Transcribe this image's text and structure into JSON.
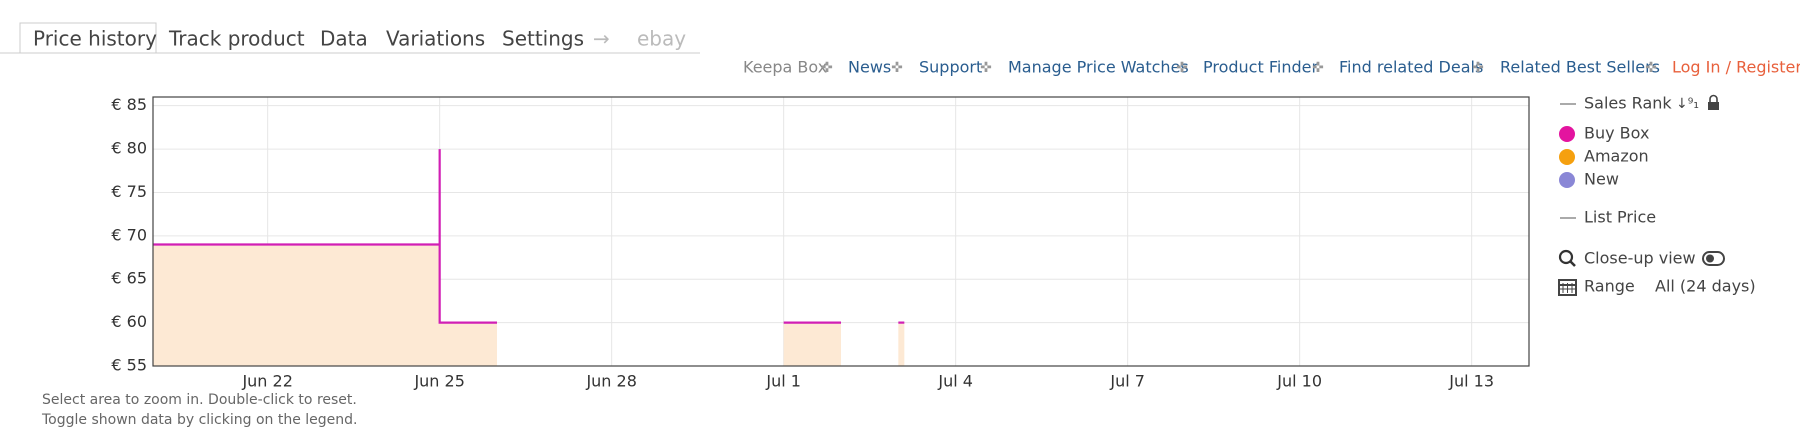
{
  "tabs": [
    "Price history",
    "Track product",
    "Data",
    "Variations",
    "Settings"
  ],
  "arrow": "→",
  "ebay": "ebay",
  "links": [
    "Keepa Box",
    "News",
    "Support",
    "Manage Price Watches",
    "Product Finder",
    "Find related Deals",
    "Related Best Sellers",
    "Log In / Register"
  ],
  "legend": {
    "sales_rank": "Sales Rank",
    "items": [
      {
        "name": "Buy Box",
        "color": "#e3149f"
      },
      {
        "name": "Amazon",
        "color": "#f5a00f"
      },
      {
        "name": "New",
        "color": "#8a87d6"
      }
    ],
    "list_price": "List Price",
    "close_up": "Close-up view",
    "range": "Range",
    "range_value": "All (24 days)"
  },
  "notes": [
    "Select area to zoom in. Double-click to reset.",
    "Toggle shown data by clicking on the legend."
  ],
  "chart_data": {
    "type": "line",
    "x": [
      "Jun 20",
      "Jun 25",
      "Jun 25",
      "Jun 26",
      null,
      "Jul 1",
      "Jul 2",
      null,
      "Jul 3"
    ],
    "series": [
      {
        "name": "Buy Box",
        "color": "#d11fb5",
        "fill": "#fde9d4",
        "values": [
          69,
          80,
          60,
          60,
          null,
          60,
          60,
          null,
          60
        ]
      }
    ],
    "xlim": [
      "Jun 20",
      "Jul 14"
    ],
    "xticks": [
      "Jun 22",
      "Jun 25",
      "Jun 28",
      "Jul 1",
      "Jul 4",
      "Jul 7",
      "Jul 10",
      "Jul 13"
    ],
    "ylim": [
      55,
      86
    ],
    "yticks": [
      {
        "value": 55,
        "label": "€ 55"
      },
      {
        "value": 60,
        "label": "€ 60"
      },
      {
        "value": 65,
        "label": "€ 65"
      },
      {
        "value": 70,
        "label": "€ 70"
      },
      {
        "value": 75,
        "label": "€ 75"
      },
      {
        "value": 80,
        "label": "€ 80"
      },
      {
        "value": 85,
        "label": "€ 85"
      }
    ],
    "grid": true
  }
}
